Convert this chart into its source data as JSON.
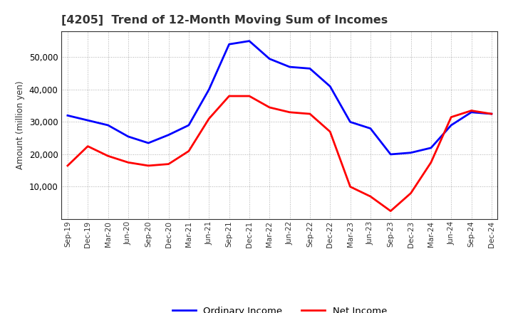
{
  "title": "[4205]  Trend of 12-Month Moving Sum of Incomes",
  "ylabel": "Amount (million yen)",
  "x_labels": [
    "Sep-19",
    "Dec-19",
    "Mar-20",
    "Jun-20",
    "Sep-20",
    "Dec-20",
    "Mar-21",
    "Jun-21",
    "Sep-21",
    "Dec-21",
    "Mar-22",
    "Jun-22",
    "Sep-22",
    "Dec-22",
    "Mar-23",
    "Jun-23",
    "Sep-23",
    "Dec-23",
    "Mar-24",
    "Jun-24",
    "Sep-24",
    "Dec-24"
  ],
  "ordinary_income": [
    32000,
    30500,
    29000,
    25500,
    23500,
    26000,
    29000,
    40000,
    54000,
    55000,
    49500,
    47000,
    46500,
    41000,
    30000,
    28000,
    20000,
    20500,
    22000,
    29000,
    33000,
    32500
  ],
  "net_income": [
    16500,
    22500,
    19500,
    17500,
    16500,
    17000,
    21000,
    31000,
    38000,
    38000,
    34500,
    33000,
    32500,
    27000,
    10000,
    7000,
    2500,
    8000,
    17500,
    31500,
    33500,
    32500
  ],
  "ordinary_color": "#0000ff",
  "net_color": "#ff0000",
  "ylim": [
    0,
    58000
  ],
  "yticks": [
    10000,
    20000,
    30000,
    40000,
    50000
  ],
  "grid_color": "#999999",
  "background_color": "#ffffff",
  "legend_ordinary": "Ordinary Income",
  "legend_net": "Net Income",
  "title_color": "#333333"
}
